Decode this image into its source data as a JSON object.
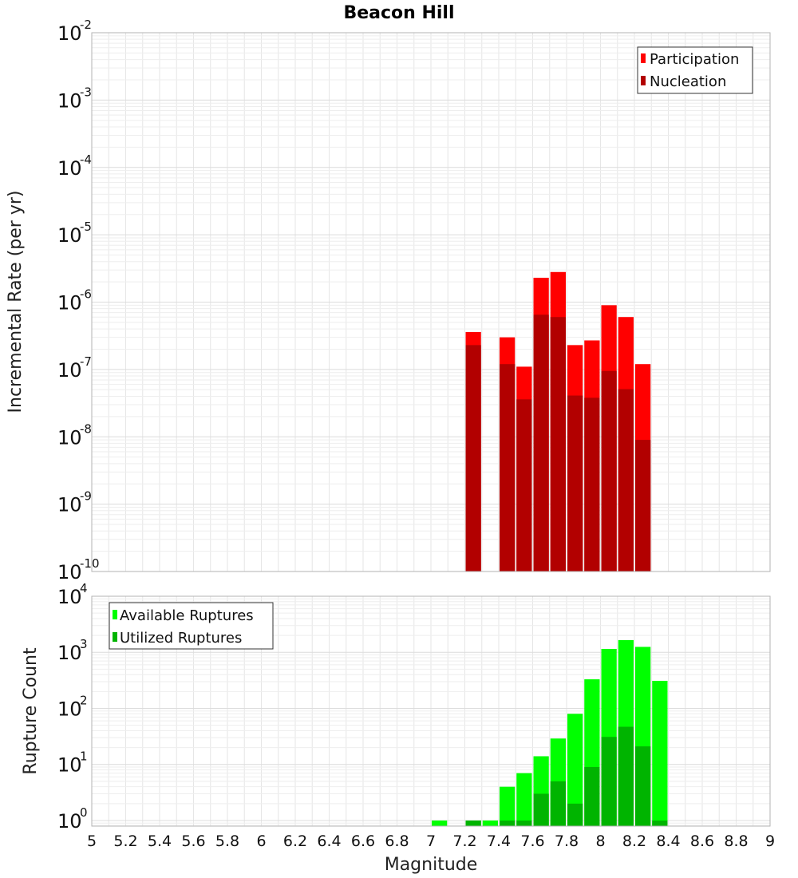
{
  "title": "Beacon Hill",
  "colors": {
    "participation": "#ff0000",
    "nucleation": "#b20000",
    "available": "#00ff00",
    "utilized": "#00b400",
    "grid": "#e6e6e6",
    "frame": "#b3b3b3"
  },
  "chart_data": [
    {
      "type": "bar",
      "scale": "log",
      "title": "Beacon Hill",
      "xlabel": "Magnitude",
      "ylabel": "Incremental Rate (per yr)",
      "xlim": [
        5,
        9
      ],
      "ylim_exp": [
        -10,
        -2
      ],
      "yticks": [
        {
          "base": "10",
          "exp": "-2"
        },
        {
          "base": "10",
          "exp": "-3"
        },
        {
          "base": "10",
          "exp": "-4"
        },
        {
          "base": "10",
          "exp": "-5"
        },
        {
          "base": "10",
          "exp": "-6"
        },
        {
          "base": "10",
          "exp": "-7"
        },
        {
          "base": "10",
          "exp": "-8"
        },
        {
          "base": "10",
          "exp": "-9"
        },
        {
          "base": "10",
          "exp": "-10"
        }
      ],
      "legend_position": "top-right",
      "legend": [
        "Participation",
        "Nucleation"
      ],
      "series": [
        {
          "name": "Participation",
          "x": [
            7.25,
            7.45,
            7.55,
            7.65,
            7.75,
            7.85,
            7.95,
            8.05,
            8.15,
            8.25
          ],
          "values": [
            3.6e-07,
            3e-07,
            1.1e-07,
            2.3e-06,
            2.8e-06,
            2.3e-07,
            2.7e-07,
            9e-07,
            6e-07,
            1.2e-07
          ]
        },
        {
          "name": "Nucleation",
          "x": [
            7.25,
            7.45,
            7.55,
            7.65,
            7.75,
            7.85,
            7.95,
            8.05,
            8.15,
            8.25
          ],
          "values": [
            2.3e-07,
            1.2e-07,
            3.6e-08,
            6.5e-07,
            6e-07,
            4.1e-08,
            3.8e-08,
            9.5e-08,
            5.1e-08,
            9e-09
          ]
        }
      ]
    },
    {
      "type": "bar",
      "scale": "log",
      "xlabel": "Magnitude",
      "ylabel": "Rupture Count",
      "xlim": [
        5,
        9
      ],
      "ylim_exp": [
        -0.1,
        4
      ],
      "yticks": [
        {
          "base": "10",
          "exp": "4"
        },
        {
          "base": "10",
          "exp": "3"
        },
        {
          "base": "10",
          "exp": "2"
        },
        {
          "base": "10",
          "exp": "1"
        },
        {
          "base": "10",
          "exp": "0"
        }
      ],
      "xticks": [
        "5",
        "5.2",
        "5.4",
        "5.6",
        "5.8",
        "6",
        "6.2",
        "6.4",
        "6.6",
        "6.8",
        "7",
        "7.2",
        "7.4",
        "7.6",
        "7.8",
        "8",
        "8.2",
        "8.4",
        "8.6",
        "8.8",
        "9"
      ],
      "legend_position": "top-left",
      "legend": [
        "Available Ruptures",
        "Utilized Ruptures"
      ],
      "series": [
        {
          "name": "Available Ruptures",
          "x": [
            7.05,
            7.25,
            7.35,
            7.45,
            7.55,
            7.65,
            7.75,
            7.85,
            7.95,
            8.05,
            8.15,
            8.25,
            8.35
          ],
          "values": [
            1,
            1,
            1,
            4,
            7,
            14,
            29,
            80,
            330,
            1150,
            1650,
            1250,
            310
          ]
        },
        {
          "name": "Utilized Ruptures",
          "x": [
            7.25,
            7.45,
            7.55,
            7.65,
            7.75,
            7.85,
            7.95,
            8.05,
            8.15,
            8.25,
            8.35
          ],
          "values": [
            1,
            1,
            1,
            3,
            5,
            2,
            9,
            31,
            47,
            21,
            1
          ]
        }
      ]
    }
  ]
}
